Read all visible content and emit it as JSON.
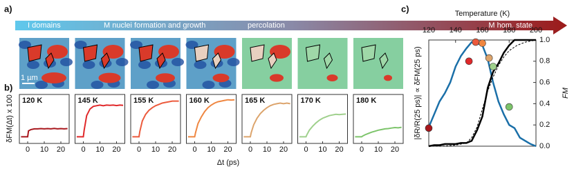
{
  "panel_labels": [
    "a)",
    "b)",
    "c)"
  ],
  "panel_a": {
    "stages": [
      "I domains",
      "M nuclei formation and growth",
      "percolation",
      "M hom. state"
    ],
    "scale_bar": "1 µm"
  },
  "panel_b": {
    "xlabel": "Δt (ps)",
    "ylabel": "δFM(Δt) x 100"
  },
  "chart_data": [
    {
      "type": "line",
      "title": "120 K",
      "color": "#a8161c",
      "x": [
        -4,
        -2,
        0,
        0.5,
        2,
        4,
        6,
        8,
        10,
        12,
        14,
        16,
        18,
        20,
        22,
        24
      ],
      "values": [
        0,
        0,
        0,
        0.45,
        0.55,
        0.6,
        0.6,
        0.62,
        0.6,
        0.62,
        0.6,
        0.63,
        0.6,
        0.62,
        0.6,
        0.62
      ],
      "xlim": [
        -5,
        25
      ],
      "xticks": [
        0,
        10,
        20
      ],
      "ylim": [
        -0.5,
        3.2
      ]
    },
    {
      "type": "line",
      "title": "145 K",
      "color": "#e0282a",
      "x": [
        -4,
        -2,
        0,
        0.5,
        2,
        4,
        6,
        8,
        10,
        12,
        14,
        16,
        18,
        20,
        22,
        24
      ],
      "values": [
        0,
        0,
        0,
        0.5,
        1.6,
        2.1,
        2.3,
        2.35,
        2.4,
        2.35,
        2.4,
        2.38,
        2.4,
        2.36,
        2.4,
        2.38
      ],
      "xlim": [
        -5,
        25
      ],
      "xticks": [
        0,
        10,
        20
      ],
      "ylim": [
        -0.5,
        3.2
      ]
    },
    {
      "type": "line",
      "title": "155 K",
      "color": "#ec5a3c",
      "x": [
        -4,
        -2,
        0,
        0.5,
        2,
        4,
        6,
        8,
        10,
        12,
        14,
        16,
        18,
        20,
        22,
        24
      ],
      "values": [
        0,
        0,
        0,
        0.4,
        1.2,
        1.7,
        2.0,
        2.2,
        2.35,
        2.45,
        2.55,
        2.6,
        2.65,
        2.7,
        2.7,
        2.7
      ],
      "xlim": [
        -5,
        25
      ],
      "xticks": [
        0,
        10,
        20
      ],
      "ylim": [
        -0.5,
        3.2
      ]
    },
    {
      "type": "line",
      "title": "160 K",
      "color": "#ef8640",
      "x": [
        -4,
        -2,
        0,
        0.5,
        2,
        4,
        6,
        8,
        10,
        12,
        14,
        16,
        18,
        20,
        22,
        24
      ],
      "values": [
        0,
        0,
        0,
        0.3,
        1.0,
        1.5,
        1.9,
        2.2,
        2.4,
        2.55,
        2.65,
        2.7,
        2.75,
        2.8,
        2.78,
        2.8
      ],
      "xlim": [
        -5,
        25
      ],
      "xticks": [
        0,
        10,
        20
      ],
      "ylim": [
        -0.5,
        3.2
      ]
    },
    {
      "type": "line",
      "title": "165 K",
      "color": "#dca46c",
      "x": [
        -4,
        -2,
        0,
        0.5,
        2,
        4,
        6,
        8,
        10,
        12,
        14,
        16,
        18,
        20,
        22,
        24
      ],
      "values": [
        0,
        0,
        0,
        0.3,
        0.9,
        1.4,
        1.75,
        2.0,
        2.2,
        2.35,
        2.45,
        2.5,
        2.55,
        2.5,
        2.55,
        2.5
      ],
      "xlim": [
        -5,
        25
      ],
      "xticks": [
        0,
        10,
        20
      ],
      "ylim": [
        -0.5,
        3.2
      ]
    },
    {
      "type": "line",
      "title": "170 K",
      "color": "#9fd08c",
      "x": [
        -4,
        -2,
        0,
        0.5,
        2,
        4,
        6,
        8,
        10,
        12,
        14,
        16,
        18,
        20,
        22,
        24
      ],
      "values": [
        0,
        0,
        0,
        0.15,
        0.5,
        0.8,
        1.05,
        1.25,
        1.4,
        1.5,
        1.6,
        1.65,
        1.7,
        1.68,
        1.7,
        1.72
      ],
      "xlim": [
        -5,
        25
      ],
      "xticks": [
        0,
        10,
        20
      ],
      "ylim": [
        -0.5,
        3.2
      ]
    },
    {
      "type": "line",
      "title": "180 K",
      "color": "#7cc46a",
      "x": [
        -4,
        -2,
        0,
        0.5,
        2,
        4,
        6,
        8,
        10,
        12,
        14,
        16,
        18,
        20,
        22,
        24
      ],
      "values": [
        0,
        0,
        0,
        0.05,
        0.15,
        0.25,
        0.35,
        0.42,
        0.5,
        0.55,
        0.6,
        0.62,
        0.66,
        0.7,
        0.68,
        0.72
      ],
      "xlim": [
        -5,
        25
      ],
      "xticks": [
        0,
        10,
        20
      ],
      "ylim": [
        -0.5,
        3.2
      ]
    },
    {
      "type": "line",
      "xlabel": "Temperature (K)",
      "ylabel": "|δR/R(25 ps)| ∝ δFM(25 ps)",
      "y2label": "FM",
      "xlim": [
        120,
        200
      ],
      "xticks": [
        120,
        140,
        160,
        180,
        200
      ],
      "ylim": [
        0,
        1
      ],
      "y2lim": [
        0,
        1
      ],
      "y2ticks": [
        {
          "value": 0,
          "label": "0.0"
        },
        0.2,
        0.4,
        0.6,
        0.8,
        {
          "value": 1,
          "label": "1.0"
        }
      ],
      "series": [
        {
          "color": "#1a6fa8",
          "x": [
            120,
            124,
            128,
            132,
            136,
            140,
            144,
            148,
            152,
            156,
            160,
            164,
            168,
            172,
            176,
            180,
            184,
            188,
            192,
            196,
            200
          ],
          "values": [
            0.18,
            0.3,
            0.42,
            0.5,
            0.6,
            0.75,
            0.85,
            0.92,
            0.98,
            0.97,
            0.95,
            0.82,
            0.6,
            0.42,
            0.3,
            0.2,
            0.17,
            0.08,
            0.05,
            0.02,
            0
          ]
        },
        {
          "color": "#000000",
          "axis": "y2",
          "x": [
            120,
            124,
            128,
            132,
            136,
            140,
            144,
            148,
            152,
            156,
            160,
            164,
            168,
            172,
            176,
            180,
            184,
            188,
            192,
            196,
            200
          ],
          "values": [
            0,
            0.01,
            0.01,
            0.02,
            0.02,
            0.02,
            0.03,
            0.03,
            0.05,
            0.15,
            0.28,
            0.55,
            0.7,
            0.78,
            0.88,
            0.95,
            1,
            1,
            1,
            1,
            1
          ]
        },
        {
          "color": "#000000",
          "axis": "y2",
          "dashed": true,
          "x": [
            120,
            130,
            140,
            148,
            152,
            156,
            160,
            164,
            168,
            172,
            176,
            180,
            186,
            192,
            200
          ],
          "values": [
            0,
            0,
            0.01,
            0.03,
            0.08,
            0.18,
            0.35,
            0.52,
            0.65,
            0.76,
            0.84,
            0.9,
            0.95,
            0.98,
            1
          ]
        }
      ],
      "markers": {
        "x": [
          120,
          150,
          155,
          160,
          165,
          168,
          180
        ],
        "values": [
          0.17,
          0.8,
          0.98,
          0.97,
          0.83,
          0.75,
          0.37
        ],
        "colors": [
          "#a8161c",
          "#e0282a",
          "#ec5a3c",
          "#ef8640",
          "#dca46c",
          "#9fd08c",
          "#7cc46a"
        ]
      }
    }
  ]
}
